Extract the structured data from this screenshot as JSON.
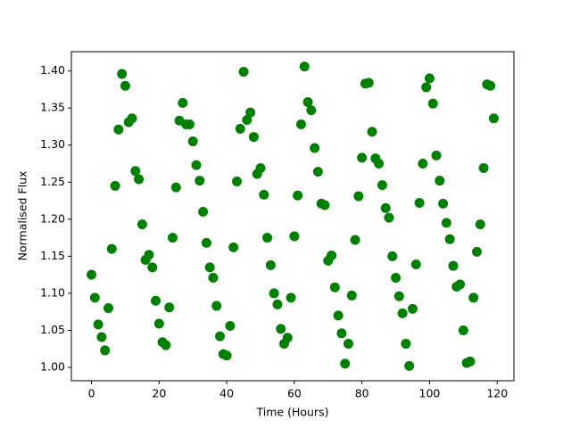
{
  "chart_data": {
    "type": "scatter",
    "xlabel": "Time (Hours)",
    "ylabel": "Normalised Flux",
    "color": "#008000",
    "grid": false,
    "x": [
      0,
      1,
      2,
      3,
      4,
      5,
      6,
      7,
      8,
      9,
      10,
      11,
      12,
      13,
      14,
      15,
      16,
      17,
      18,
      19,
      20,
      21,
      22,
      23,
      24,
      25,
      26,
      27,
      28,
      29,
      30,
      31,
      32,
      33,
      34,
      35,
      36,
      37,
      38,
      39,
      40,
      41,
      42,
      43,
      44,
      45,
      46,
      47,
      48,
      49,
      50,
      51,
      52,
      53,
      54,
      55,
      56,
      57,
      58,
      59,
      60,
      61,
      62,
      63,
      64,
      65,
      66,
      67,
      68,
      69,
      70,
      71,
      72,
      73,
      74,
      75,
      76,
      77,
      78,
      79,
      80,
      81,
      82,
      83,
      84,
      85,
      86,
      87,
      88,
      89,
      90,
      91,
      92,
      93,
      94,
      95,
      96,
      97,
      98,
      99,
      100,
      101,
      102,
      103,
      104,
      105,
      106,
      107,
      108,
      109,
      110,
      111,
      112,
      113,
      114,
      115,
      116,
      117,
      118,
      119
    ],
    "values": [
      1.125,
      1.094,
      1.058,
      1.041,
      1.023,
      1.08,
      1.16,
      1.245,
      1.321,
      1.396,
      1.38,
      1.331,
      1.336,
      1.265,
      1.254,
      1.193,
      1.145,
      1.152,
      1.135,
      1.09,
      1.059,
      1.034,
      1.03,
      1.081,
      1.175,
      1.243,
      1.333,
      1.357,
      1.328,
      1.328,
      1.305,
      1.273,
      1.252,
      1.21,
      1.168,
      1.135,
      1.121,
      1.083,
      1.042,
      1.018,
      1.016,
      1.056,
      1.162,
      1.251,
      1.322,
      1.399,
      1.334,
      1.344,
      1.311,
      1.261,
      1.269,
      1.233,
      1.175,
      1.138,
      1.1,
      1.085,
      1.052,
      1.032,
      1.04,
      1.094,
      1.177,
      1.232,
      1.328,
      1.406,
      1.358,
      1.347,
      1.296,
      1.264,
      1.221,
      1.219,
      1.144,
      1.151,
      1.108,
      1.07,
      1.046,
      1.005,
      1.032,
      1.097,
      1.172,
      1.231,
      1.283,
      1.383,
      1.384,
      1.318,
      1.282,
      1.275,
      1.246,
      1.215,
      1.202,
      1.15,
      1.121,
      1.096,
      1.073,
      1.032,
      1.002,
      1.079,
      1.139,
      1.222,
      1.275,
      1.378,
      1.39,
      1.356,
      1.286,
      1.252,
      1.221,
      1.195,
      1.173,
      1.137,
      1.109,
      1.112,
      1.05,
      1.006,
      1.008,
      1.094,
      1.156,
      1.193,
      1.269,
      1.382,
      1.38,
      1.336
    ],
    "xlim": [
      -5.95,
      124.95
    ],
    "xticks": [
      0,
      20,
      40,
      60,
      80,
      100,
      120
    ],
    "ylim": [
      0.982,
      1.426
    ],
    "yticks": [
      {
        "value": 1.0,
        "label": "1.00"
      },
      1.05,
      {
        "value": 1.1,
        "label": "1.10"
      },
      1.15,
      {
        "value": 1.2,
        "label": "1.20"
      },
      1.25,
      {
        "value": 1.3,
        "label": "1.30"
      },
      1.35,
      {
        "value": 1.4,
        "label": "1.40"
      }
    ]
  }
}
